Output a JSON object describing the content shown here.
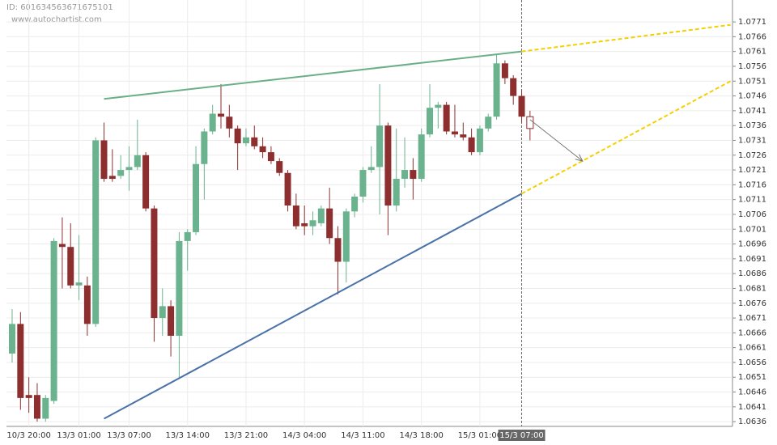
{
  "chart_data": {
    "type": "candlestick",
    "id_label": "ID: 601634563671675101",
    "source": "www.autochartist.com",
    "categories": [
      null,
      null,
      "10/3 20:00",
      null,
      null,
      null,
      null,
      null,
      "13/3 01:00",
      null,
      null,
      null,
      null,
      null,
      "13/3 07:00",
      null,
      null,
      null,
      null,
      null,
      null,
      "13/3 14:00",
      null,
      null,
      null,
      null,
      null,
      null,
      "13/3 21:00",
      null,
      null,
      null,
      null,
      null,
      null,
      "14/3 04:00",
      null,
      null,
      null,
      null,
      null,
      null,
      "14/3 11:00",
      null,
      null,
      null,
      null,
      null,
      null,
      "14/3 18:00",
      null,
      null,
      null,
      null,
      null,
      null,
      "15/3 01:00",
      null,
      null,
      null,
      null,
      "15/3 07:00",
      null
    ],
    "open": [
      1.0659,
      1.0669,
      1.0645,
      1.0645,
      1.0637,
      1.0643,
      1.0696,
      1.0695,
      1.0682,
      1.0682,
      1.0669,
      1.0731,
      1.0719,
      1.0719,
      1.0721,
      1.0722,
      1.0726,
      1.0708,
      1.0671,
      1.0675,
      1.0665,
      1.0697,
      1.07,
      1.0723,
      1.0734,
      1.074,
      1.0739,
      1.0735,
      1.073,
      1.0732,
      1.0729,
      1.0727,
      1.0724,
      1.072,
      1.0709,
      1.0703,
      1.0702,
      1.0703,
      1.0708,
      1.0698,
      1.069,
      1.0707,
      1.0712,
      1.0721,
      1.0722,
      1.0736,
      1.0709,
      1.0718,
      1.0721,
      1.0718,
      1.0733,
      1.0742,
      1.0743,
      1.0734,
      1.0733,
      1.0732,
      1.0727,
      1.0735,
      1.0739,
      1.0757,
      1.0752,
      1.0746,
      1.0739
    ],
    "high": [
      1.0674,
      1.0673,
      1.0651,
      1.0649,
      1.0645,
      1.0698,
      1.0705,
      1.0703,
      1.0699,
      1.0685,
      1.0732,
      1.0737,
      1.0728,
      1.0726,
      1.0729,
      1.0738,
      1.0727,
      1.0709,
      1.0681,
      1.0677,
      1.07,
      1.0701,
      1.0729,
      1.0735,
      1.0743,
      1.075,
      1.0743,
      1.0736,
      1.0735,
      1.0736,
      1.0732,
      1.0729,
      1.0725,
      1.0721,
      1.0713,
      1.0709,
      1.0707,
      1.0709,
      1.0715,
      1.0702,
      1.0708,
      1.0713,
      1.0722,
      1.0729,
      1.075,
      1.0737,
      1.0735,
      1.0732,
      1.0725,
      1.0735,
      1.075,
      1.0744,
      1.0744,
      1.0743,
      1.0737,
      1.0735,
      1.0736,
      1.074,
      1.076,
      1.0758,
      1.0753,
      1.0748,
      1.0741
    ],
    "low": [
      1.0656,
      1.064,
      1.0639,
      1.0636,
      1.0636,
      1.0642,
      1.0681,
      1.0681,
      1.0677,
      1.0665,
      1.0668,
      1.0717,
      1.0717,
      1.0718,
      1.0714,
      1.0721,
      1.0707,
      1.0663,
      1.0665,
      1.0658,
      1.0651,
      1.0687,
      1.0699,
      1.0711,
      1.0733,
      1.0735,
      1.0732,
      1.0721,
      1.0729,
      1.0728,
      1.0725,
      1.0723,
      1.0719,
      1.0707,
      1.0701,
      1.0699,
      1.0699,
      1.0702,
      1.0696,
      1.0679,
      1.0683,
      1.0705,
      1.071,
      1.072,
      1.0706,
      1.0699,
      1.0707,
      1.0715,
      1.0711,
      1.0717,
      1.0732,
      1.0735,
      1.0733,
      1.0732,
      1.0731,
      1.0726,
      1.0726,
      1.0734,
      1.0738,
      1.075,
      1.0743,
      1.0737,
      1.0731
    ],
    "close": [
      1.0669,
      1.0644,
      1.0644,
      1.0637,
      1.0644,
      1.0697,
      1.0695,
      1.0682,
      1.0683,
      1.0669,
      1.0731,
      1.0718,
      1.0718,
      1.0721,
      1.0722,
      1.0726,
      1.0708,
      1.0671,
      1.0675,
      1.0665,
      1.0697,
      1.07,
      1.0723,
      1.0734,
      1.074,
      1.0739,
      1.0735,
      1.073,
      1.0732,
      1.0729,
      1.0727,
      1.0724,
      1.072,
      1.0709,
      1.0702,
      1.0702,
      1.0704,
      1.0708,
      1.0698,
      1.069,
      1.0707,
      1.0712,
      1.0721,
      1.0722,
      1.0736,
      1.0709,
      1.0718,
      1.0721,
      1.0718,
      1.0733,
      1.0742,
      1.0743,
      1.0734,
      1.0733,
      1.0732,
      1.0727,
      1.0735,
      1.0739,
      1.0757,
      1.0752,
      1.0746,
      1.0739,
      1.0735
    ],
    "up_color": "#6ab38e",
    "down_color": "#8e2f2f",
    "last_candle_hollow": true,
    "crosshair_at": 61,
    "ylim": [
      1.06344,
      1.07784
    ],
    "yticks": [
      1.0636,
      1.0641,
      1.0646,
      1.0651,
      1.0656,
      1.0661,
      1.0666,
      1.0671,
      1.0676,
      1.0681,
      1.0686,
      1.0691,
      1.0696,
      1.0701,
      1.0706,
      1.0711,
      1.0716,
      1.0721,
      1.0726,
      1.0731,
      1.0736,
      1.0741,
      1.0746,
      1.0751,
      1.0756,
      1.0761,
      1.0766,
      1.0771
    ],
    "grid": true,
    "lines": [
      {
        "color": "#6aaf87",
        "dashed": false,
        "x": [
          11,
          61
        ],
        "values": [
          1.0745,
          1.0761
        ]
      },
      {
        "color": "#f5d000",
        "dashed": true,
        "x": [
          61,
          86
        ],
        "values": [
          1.0761,
          1.077
        ]
      },
      {
        "color": "#4a72a8",
        "dashed": false,
        "x": [
          11,
          61
        ],
        "values": [
          1.0637,
          1.0713
        ]
      },
      {
        "color": "#f5d000",
        "dashed": true,
        "x": [
          61,
          86
        ],
        "values": [
          1.0713,
          1.0751
        ]
      }
    ],
    "forecast_arrow": {
      "color": "#777777",
      "x": [
        62,
        68.3
      ],
      "values": [
        1.0738,
        1.0724
      ]
    }
  }
}
